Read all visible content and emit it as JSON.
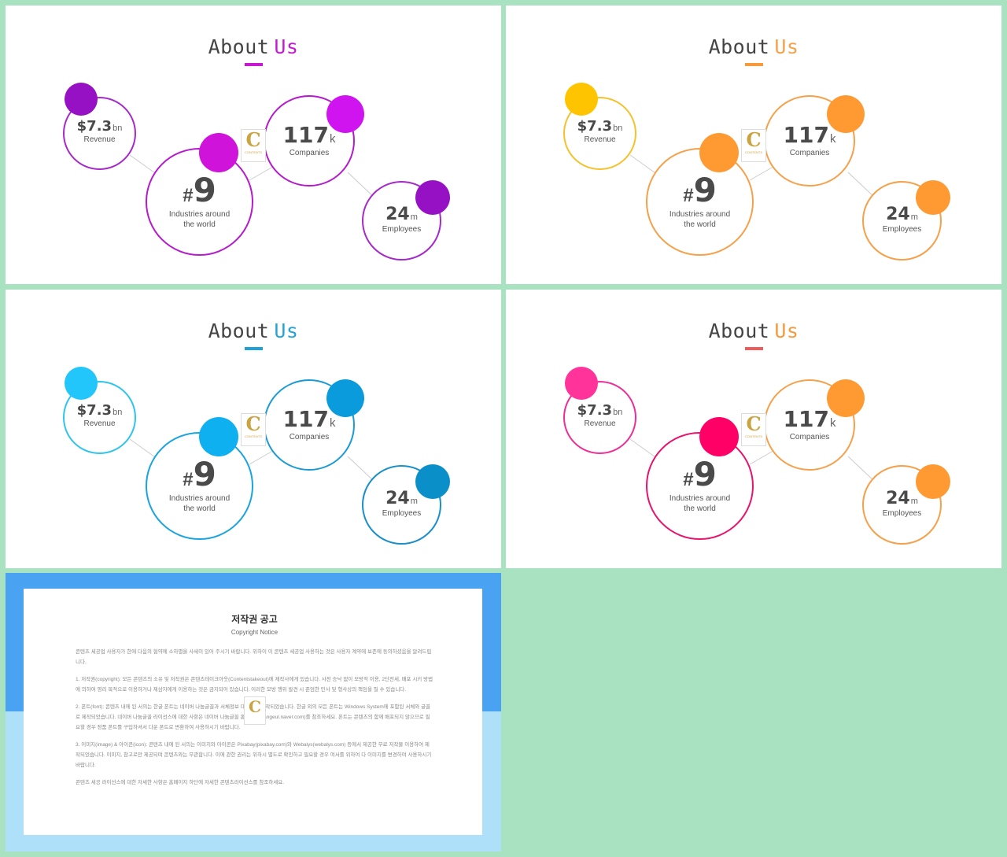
{
  "slides": [
    {
      "title_a": "About",
      "title_b": "Us",
      "title_b_color": "#c51ad0",
      "underline": "#c51ad0",
      "ring_colors": [
        "#a629c9",
        "#b51acc",
        "#b51acc",
        "#a629c9"
      ],
      "dot_colors": [
        "#9610c4",
        "#cf13db",
        "#cf14f0",
        "#9610c4"
      ]
    },
    {
      "title_a": "About",
      "title_b": "Us",
      "title_b_color": "#f7a24a",
      "underline": "#f79a3c",
      "ring_colors": [
        "#f5c22e",
        "#f5a04a",
        "#f5a04a",
        "#f5a04a"
      ],
      "dot_colors": [
        "#ffc400",
        "#ff9a33",
        "#ff9a33",
        "#ff9a33"
      ]
    },
    {
      "title_a": "About",
      "title_b": "Us",
      "title_b_color": "#23a3d6",
      "underline": "#1fa0d8",
      "ring_colors": [
        "#2ec4ee",
        "#1aa4de",
        "#1a9bd6",
        "#1a8fca"
      ],
      "dot_colors": [
        "#22c6fa",
        "#0fb0f0",
        "#099bdc",
        "#0a8fc8"
      ]
    },
    {
      "title_a": "About",
      "title_b": "Us",
      "title_b_color": "#f79a3c",
      "underline": "#ef5a5a",
      "ring_colors": [
        "#ec2e96",
        "#e8136a",
        "#f5a04a",
        "#f5a04a"
      ],
      "dot_colors": [
        "#ff3399",
        "#ff0066",
        "#ff9a33",
        "#ff9a33"
      ]
    }
  ],
  "stats": {
    "revenue": {
      "value": "$7.3",
      "unit": "bn",
      "label": "Revenue"
    },
    "industries": {
      "hash": "#",
      "value": "9",
      "label_line1": "Industries around",
      "label_line2": "the world"
    },
    "companies": {
      "value": "117",
      "unit": "k",
      "label": "Companies"
    },
    "employees": {
      "value": "24",
      "unit": "m",
      "label": "Employees"
    }
  },
  "logo": {
    "letter": "C",
    "text": "CONTENTS"
  },
  "notice": {
    "title": "저작권 공고",
    "subtitle": "Copyright Notice",
    "p1": "콘텐츠 세공업 사용자가 한에 다음의 협약에 소하별을 사세이 있어 주시기 바랍니다. 위하이 이 콘텐츠 세공업 사용하는 것은 사용자 계약에 보존에 동의하셨음을 알려드립니다.",
    "p2": "1. 저작권(copyright): 모든 콘텐츠의 소유 및 저작권은 콘텐츠테이크아웃(Contentstakeout)에 제작사에게 있습니다. 사전 승낙 없이 모방적 이용, 2단전세, 배포 시키 방법에 의하여 영리 목적으로 이용하거나 제삼자에게 이용하는 것은 금지되어 있습니다. 이러한 모방 행위 발견 시 준엄한 민사 및 형사상의 책임을 질 수 있습니다.",
    "p3": "2. 폰트(font): 콘텐츠 내에 된 서의는 한글 폰트는 네이버 나눔글꼴과 서체정보 대부분이 제작되었습니다. 한글 외의 모든 폰트는 Windows System에 포함된 서체와 글꼴로 제작되었습니다. 네이버 나눔글꼴 라이선스에 대한 사항은 네이버 나눔글꼴 홈페이지(hangeul.naver.com)를 참조하세요. 폰트는 콘텐츠의 함께 배포되지 않으므로 필요할 경우 정품 폰트를 구입하셔서 다운 폰트로 변환하여 사용하시기 바랍니다.",
    "p4": "3. 이미지(image) & 아이콘(icon): 콘텐츠 내에 된 서의는 이미지와 아이콘은 Pixabay(pixabay.com)와 Webalys(webalys.com) 등에서 제공한 무료 저작물 이용하여 제작되었습니다. 이미지, 참고로만 제공되며 콘텐츠와는 무관합니다. 이에 관한 권리는 위하시 별도로 확인하고 필요할 경우 여서를 위하여 다 이미지를 변경하여 사용하시기 바랍니다.",
    "p5": "콘텐츠 세공 라이선스에 대한 자세한 사항은 홈페이지 하단에 자세한 콘텐츠라이선스를 참조하세요."
  }
}
